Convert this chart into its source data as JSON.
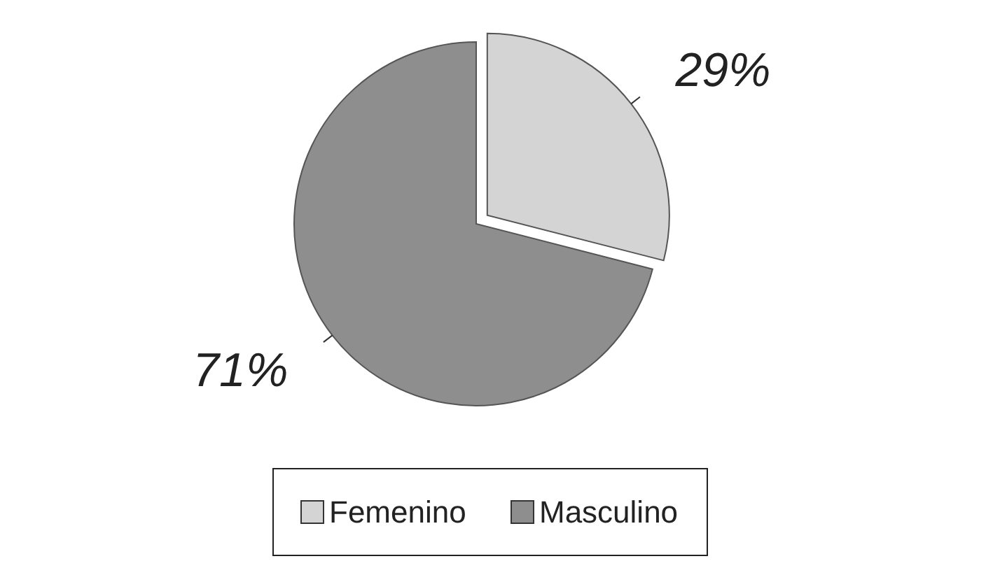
{
  "chart_data": {
    "type": "pie",
    "categories": [
      "Femenino",
      "Masculino"
    ],
    "values": [
      29,
      71
    ],
    "colors": [
      "#d4d4d4",
      "#8e8e8e"
    ],
    "value_labels": [
      "29%",
      "71%"
    ],
    "legend": "bottom"
  }
}
